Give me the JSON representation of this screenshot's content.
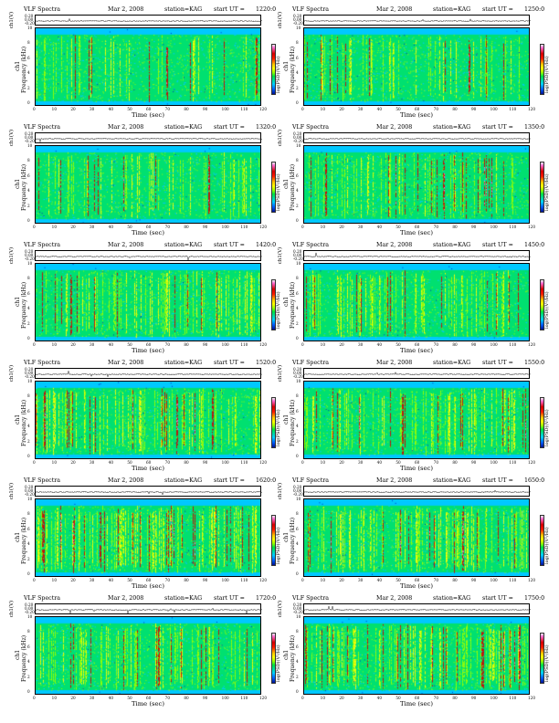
{
  "header_left": "VLF Spectra",
  "date": "Mar 2, 2008",
  "station": "station=KAG",
  "start_prefix": "start  UT  =",
  "ts_label": "ch1(V)",
  "freq_label": "Frequency  (kHz)",
  "ch_label": "ch1",
  "cbar_label": "log(PSD)(V²/Hz)",
  "xlabel": "Time  (sec)",
  "ts_ticks": [
    "0.20",
    "0.00",
    "-0.20"
  ],
  "freq_ticks": [
    "10",
    "8",
    "6",
    "4",
    "2",
    "0"
  ],
  "time_ticks": [
    "0",
    "10",
    "20",
    "30",
    "40",
    "50",
    "60",
    "70",
    "80",
    "90",
    "100",
    "110",
    "120"
  ],
  "colors": {
    "background": "#00c8ff",
    "lower": "#00e070",
    "mid": "#9cff00",
    "upper": "#ffff00",
    "hot": "#d40000",
    "extreme": "#ff6ad1"
  },
  "panels": [
    {
      "start_ut": "1220:0",
      "activity": 0.55
    },
    {
      "start_ut": "1250:0",
      "activity": 0.55
    },
    {
      "start_ut": "1320:0",
      "activity": 0.6
    },
    {
      "start_ut": "1350:0",
      "activity": 0.65
    },
    {
      "start_ut": "1420:0",
      "activity": 0.75
    },
    {
      "start_ut": "1450:0",
      "activity": 0.7
    },
    {
      "start_ut": "1520:0",
      "activity": 0.8
    },
    {
      "start_ut": "1550:0",
      "activity": 0.75
    },
    {
      "start_ut": "1620:0",
      "activity": 0.85
    },
    {
      "start_ut": "1650:0",
      "activity": 0.9
    },
    {
      "start_ut": "1720:0",
      "activity": 0.85
    },
    {
      "start_ut": "1750:0",
      "activity": 0.9
    }
  ],
  "chart_data": {
    "type": "heatmap",
    "title": "VLF Spectra",
    "xlabel": "Time  (sec)",
    "ylabel": "Frequency  (kHz)",
    "xlim": [
      0,
      120
    ],
    "ylim": [
      0,
      10
    ],
    "colorbar": "log(PSD)(V²/Hz)",
    "panels_start_ut": [
      "1220:0",
      "1250:0",
      "1320:0",
      "1350:0",
      "1420:0",
      "1450:0",
      "1520:0",
      "1550:0",
      "1620:0",
      "1650:0",
      "1720:0",
      "1750:0"
    ]
  }
}
